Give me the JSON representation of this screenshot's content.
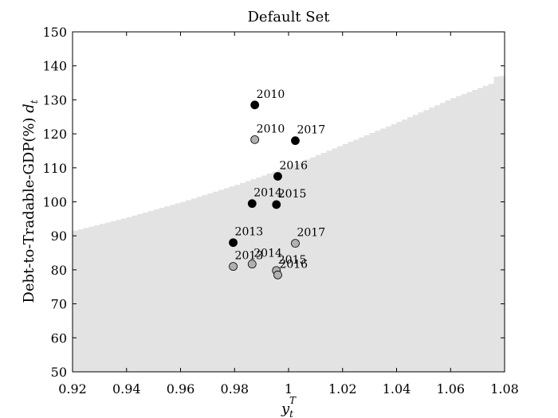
{
  "chart_data": {
    "type": "scatter",
    "title": "Default Set",
    "xlabel": "y",
    "xlabel_sub": "t",
    "xlabel_sup": "T",
    "ylabel": "Debt-to-Tradable-GDP(%) ",
    "ylabel_symbol": "d",
    "ylabel_symbol_sub": "t",
    "xlim": [
      0.92,
      1.08
    ],
    "ylim": [
      50,
      150
    ],
    "x_ticks": [
      "0.92",
      "0.94",
      "0.96",
      "0.98",
      "1",
      "1.02",
      "1.04",
      "1.06",
      "1.08"
    ],
    "y_ticks": [
      "50",
      "60",
      "70",
      "80",
      "90",
      "100",
      "110",
      "120",
      "130",
      "140",
      "150"
    ],
    "grid": false,
    "default_region": {
      "color": "#e3e3e3",
      "boundary_x": [
        0.92,
        0.94,
        0.96,
        0.98,
        1.0,
        1.02,
        1.04,
        1.06,
        1.075,
        1.076,
        1.08
      ],
      "boundary_y": [
        91.5,
        95.5,
        100,
        105,
        110.5,
        117,
        123.5,
        130.5,
        135,
        136.8,
        137.2
      ]
    },
    "series": [
      {
        "marker_color": "#000000",
        "points": [
          {
            "x": 0.9875,
            "y": 128.5,
            "label": "2010"
          },
          {
            "x": 1.0025,
            "y": 118.0,
            "label": "2017"
          },
          {
            "x": 0.996,
            "y": 107.5,
            "label": "2016"
          },
          {
            "x": 0.9865,
            "y": 99.5,
            "label": "2014"
          },
          {
            "x": 0.9955,
            "y": 99.2,
            "label": "2015"
          },
          {
            "x": 0.9795,
            "y": 88.0,
            "label": "2013"
          }
        ]
      },
      {
        "marker_color": "#b0b0b0",
        "points": [
          {
            "x": 0.9875,
            "y": 118.3,
            "label": "2010"
          },
          {
            "x": 1.0025,
            "y": 87.8,
            "label": "2017"
          },
          {
            "x": 0.9795,
            "y": 81.0,
            "label": "2013"
          },
          {
            "x": 0.9865,
            "y": 81.7,
            "label": "2014"
          },
          {
            "x": 0.9955,
            "y": 79.8,
            "label": "2015"
          },
          {
            "x": 0.996,
            "y": 78.5,
            "label": "2016"
          }
        ]
      }
    ]
  }
}
